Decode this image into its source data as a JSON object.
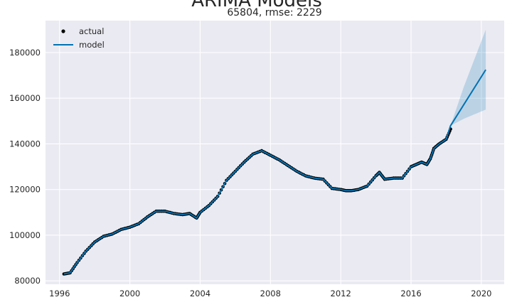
{
  "chart_data": {
    "type": "line",
    "title": "ARIMA Models",
    "subtitle": "65804, rmse: 2229",
    "xlabel": "",
    "ylabel": "",
    "xlim": [
      1995.2,
      2021.3
    ],
    "ylim": [
      78500,
      194000
    ],
    "x_ticks": [
      "1996",
      "2000",
      "2004",
      "2008",
      "2012",
      "2016",
      "2020"
    ],
    "y_ticks": [
      "80000",
      "100000",
      "120000",
      "140000",
      "160000",
      "180000"
    ],
    "grid": true,
    "legend": {
      "position": "top-left",
      "entries": [
        "actual",
        "model"
      ]
    },
    "colors": {
      "actual": "#000000",
      "model": "#0072b2",
      "band": "#0072b2",
      "background": "#eaeaf2",
      "grid": "#ffffff"
    },
    "series": [
      {
        "name": "actual",
        "marker": "point",
        "x": [
          1996.25,
          1996.6,
          1997.0,
          1997.5,
          1998.0,
          1998.5,
          1999.0,
          1999.5,
          2000.0,
          2000.5,
          2001.0,
          2001.5,
          2002.0,
          2002.5,
          2003.0,
          2003.4,
          2003.8,
          2004.0,
          2004.5,
          2005.0,
          2005.5,
          2006.0,
          2006.5,
          2007.0,
          2007.5,
          2008.0,
          2008.5,
          2009.0,
          2009.5,
          2010.0,
          2010.5,
          2011.0,
          2011.5,
          2012.0,
          2012.3,
          2012.6,
          2013.0,
          2013.5,
          2014.0,
          2014.2,
          2014.5,
          2015.0,
          2015.5,
          2016.0,
          2016.3,
          2016.6,
          2016.9,
          2017.1,
          2017.3,
          2017.6,
          2018.0,
          2018.25
        ],
        "y": [
          83000,
          83500,
          88000,
          93000,
          97000,
          99500,
          100500,
          102500,
          103500,
          105000,
          108000,
          110500,
          110500,
          109500,
          109000,
          109500,
          107500,
          110000,
          113000,
          117000,
          124000,
          128000,
          132000,
          135500,
          137000,
          135000,
          133000,
          130500,
          128000,
          126000,
          125000,
          124500,
          120500,
          120000,
          119500,
          119500,
          120000,
          121500,
          126000,
          127500,
          124500,
          125000,
          125000,
          130000,
          131000,
          132000,
          131000,
          133500,
          138000,
          140000,
          142000,
          146500
        ]
      },
      {
        "name": "model",
        "x": [
          1996.25,
          1996.6,
          1997.0,
          1997.5,
          1998.0,
          1998.5,
          1999.0,
          1999.5,
          2000.0,
          2000.5,
          2001.0,
          2001.5,
          2002.0,
          2002.5,
          2003.0,
          2003.4,
          2003.8,
          2004.0,
          2004.5,
          2005.0,
          2005.5,
          2006.0,
          2006.5,
          2007.0,
          2007.5,
          2008.0,
          2008.5,
          2009.0,
          2009.5,
          2010.0,
          2010.5,
          2011.0,
          2011.5,
          2012.0,
          2012.3,
          2012.6,
          2013.0,
          2013.5,
          2014.0,
          2014.2,
          2014.5,
          2015.0,
          2015.5,
          2016.0,
          2016.3,
          2016.6,
          2016.9,
          2017.1,
          2017.3,
          2017.6,
          2018.0,
          2018.25,
          2020.25
        ],
        "y": [
          83000,
          83500,
          88000,
          93000,
          97000,
          99500,
          100500,
          102500,
          103500,
          105000,
          108000,
          110500,
          110500,
          109500,
          109000,
          109500,
          107500,
          110000,
          113000,
          117000,
          124000,
          128000,
          132000,
          135500,
          137000,
          135000,
          133000,
          130500,
          128000,
          126000,
          125000,
          124500,
          120500,
          120000,
          119500,
          119500,
          120000,
          121500,
          126000,
          127500,
          124500,
          125000,
          125000,
          130000,
          131000,
          132000,
          131000,
          133500,
          138000,
          140000,
          142000,
          148000,
          172500
        ]
      }
    ],
    "confidence_band": {
      "x": [
        2018.25,
        2019.0,
        2020.25
      ],
      "lower": [
        148000,
        151000,
        155000
      ],
      "upper": [
        148000,
        165000,
        190000
      ]
    }
  }
}
